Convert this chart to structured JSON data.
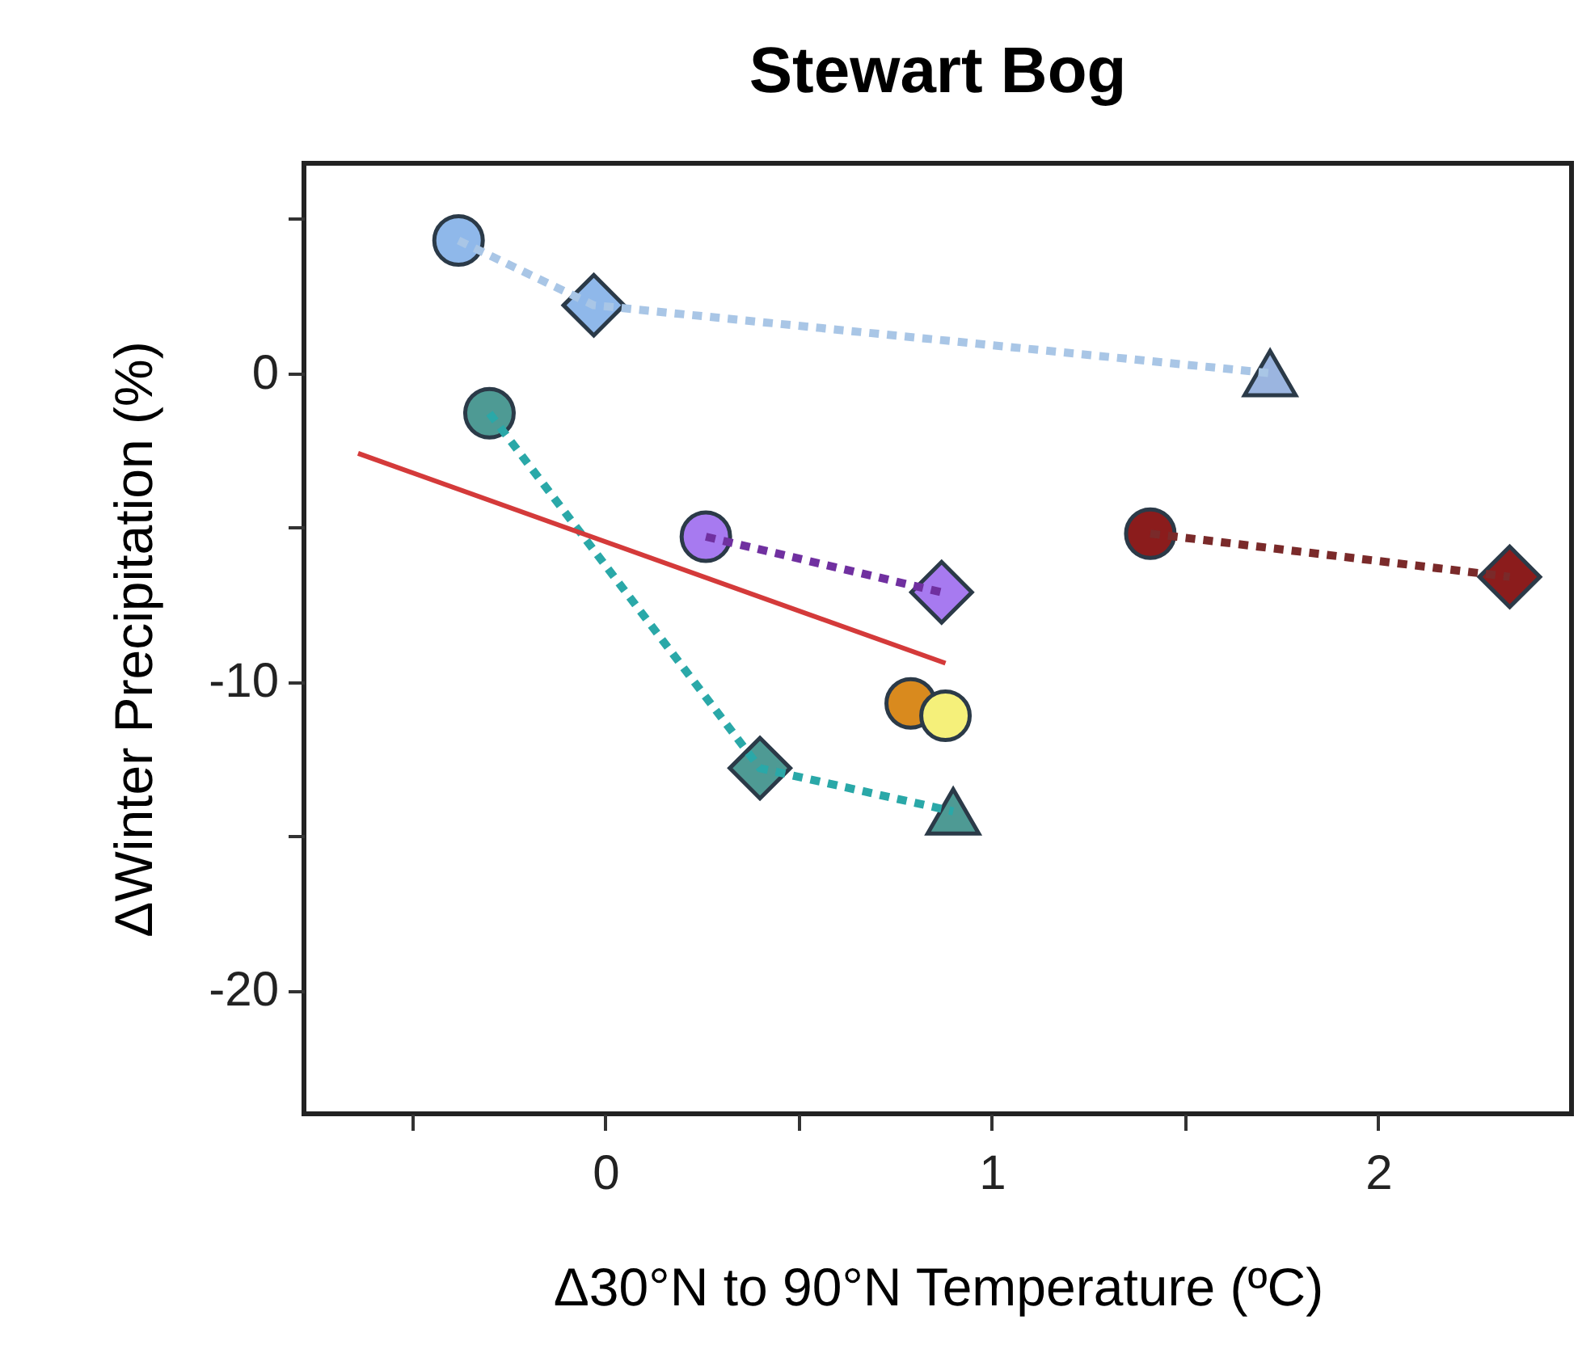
{
  "chart_data": {
    "type": "scatter",
    "title": "Stewart Bog",
    "xlabel": "Δ30°N to 90°N Temperature (ºC)",
    "ylabel": "ΔWinter Precipitation (%)",
    "xlim": [
      -0.78,
      2.5
    ],
    "xticks": [
      {
        "value": -0.5,
        "label": null
      },
      0,
      {
        "value": 0.5,
        "label": null
      },
      1,
      {
        "value": 1.5,
        "label": null
      },
      2
    ],
    "ylim": [
      -24,
      6.8
    ],
    "yticks": [
      {
        "value": 5,
        "label": null
      },
      0,
      {
        "value": -5,
        "label": null
      },
      -10,
      {
        "value": -15,
        "label": null
      },
      -20
    ],
    "series": [
      {
        "type": "line",
        "line_style": "dotted",
        "marker": "none",
        "color": "#a9c6e6",
        "x": [
          -0.38,
          -0.03,
          1.72
        ],
        "values": [
          4.3,
          2.2,
          0.0
        ]
      },
      {
        "type": "line",
        "line_style": "dotted",
        "marker": "none",
        "color": "#2aa8a8",
        "x": [
          -0.3,
          0.4,
          0.9
        ],
        "values": [
          -1.3,
          -12.8,
          -14.2
        ]
      },
      {
        "type": "line",
        "line_style": "dotted",
        "marker": "none",
        "color": "#7030a0",
        "x": [
          0.26,
          0.87
        ],
        "values": [
          -5.3,
          -7.1
        ]
      },
      {
        "type": "line",
        "line_style": "dotted",
        "marker": "none",
        "color": "#7a2a2a",
        "x": [
          1.41,
          2.34
        ],
        "values": [
          -5.2,
          -6.6
        ]
      },
      {
        "type": "line",
        "line_style": "solid",
        "marker": "none",
        "color": "#d43a3a",
        "x": [
          -0.64,
          0.88
        ],
        "values": [
          -2.6,
          -9.4
        ]
      },
      {
        "marker": "circle",
        "x": [
          -0.38,
          -0.3,
          0.26,
          1.41
        ],
        "values": [
          4.3,
          -1.3,
          -5.3,
          -5.2
        ],
        "colors": [
          "#8fb8ea",
          "#4e9a94",
          "#a77af0",
          "#8b1c1c"
        ]
      },
      {
        "marker": "diamond",
        "x": [
          -0.03,
          0.4,
          0.87,
          2.34
        ],
        "values": [
          2.2,
          -12.8,
          -7.1,
          -6.6
        ],
        "colors": [
          "#8fb8ea",
          "#4e9a94",
          "#a77af0",
          "#8b1c1c"
        ]
      },
      {
        "marker": "triangle",
        "x": [
          1.72,
          0.9
        ],
        "values": [
          0.0,
          -14.2
        ],
        "colors": [
          "#9bb5e0",
          "#4e9a94"
        ]
      },
      {
        "x": [
          0.79,
          0.88
        ],
        "values": [
          -10.7,
          -11.1
        ],
        "colors": [
          "#d98a1e",
          "#f5f07a"
        ]
      }
    ]
  }
}
